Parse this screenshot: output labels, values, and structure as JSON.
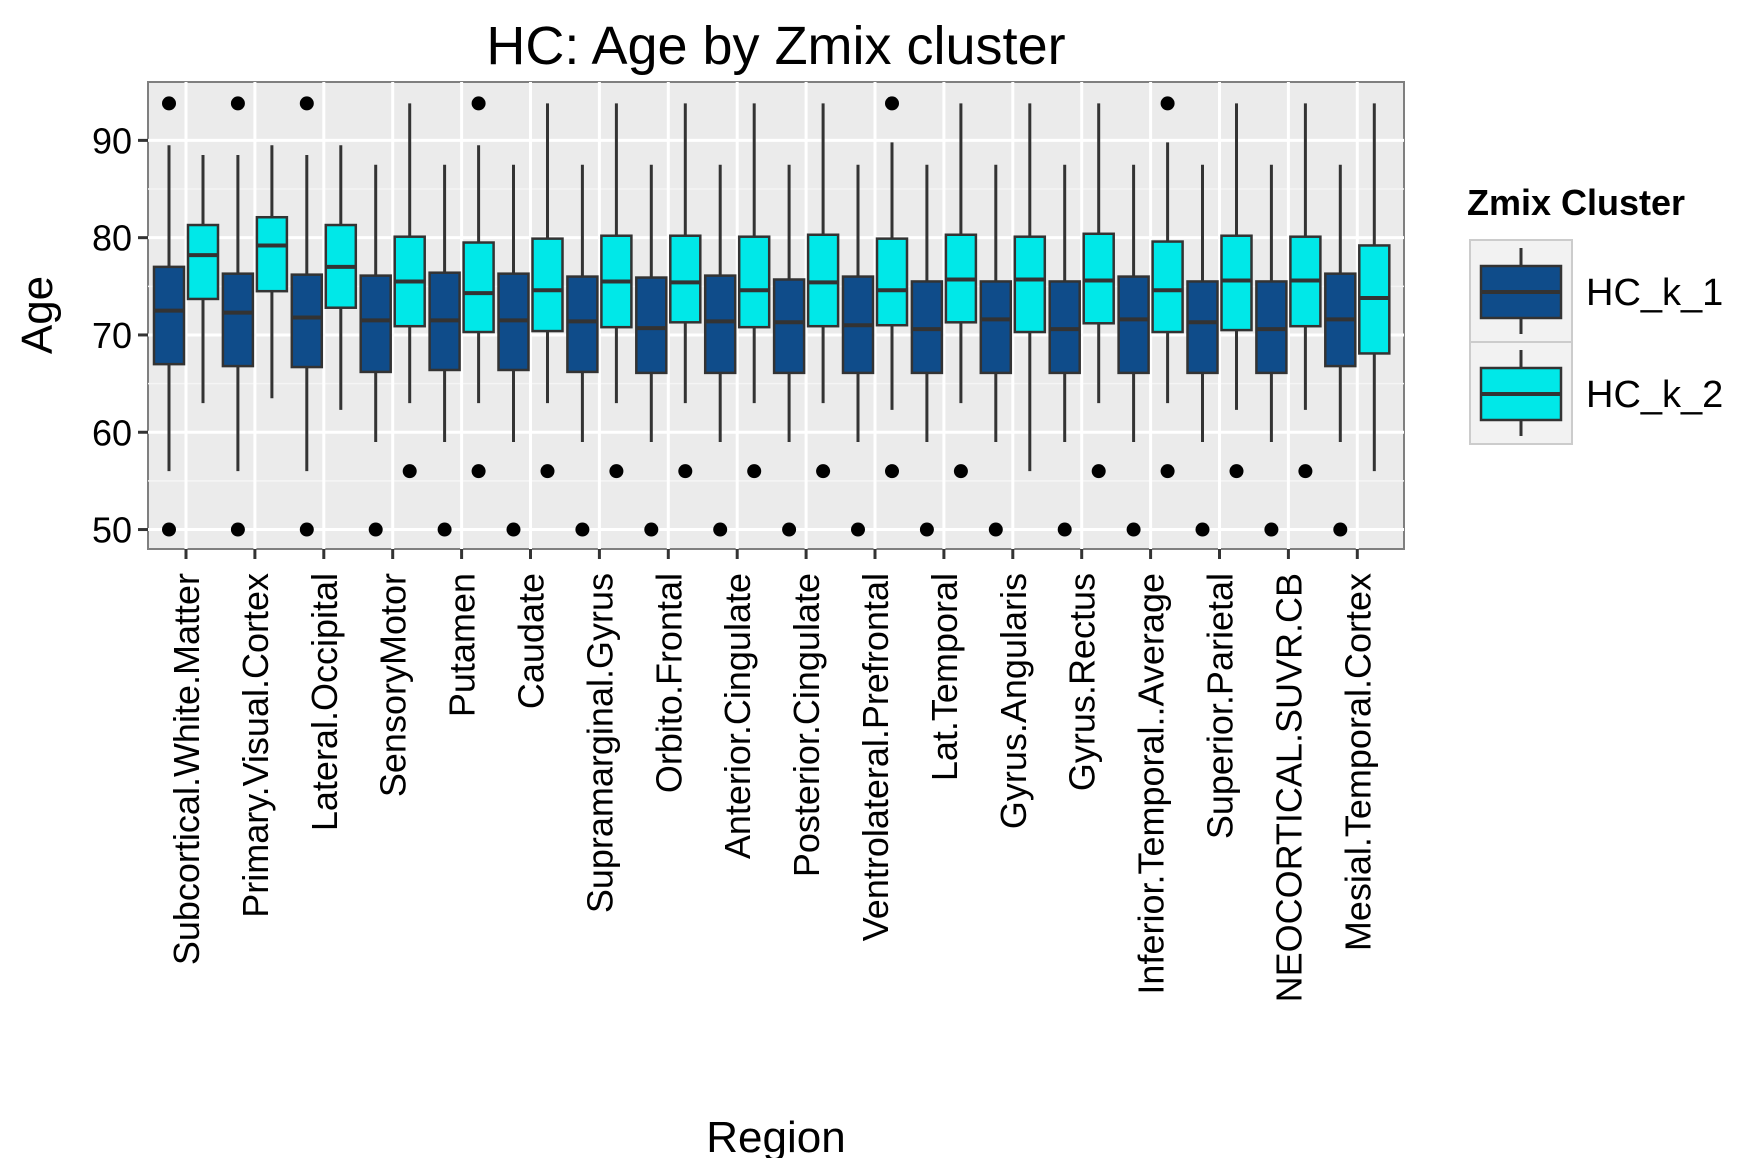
{
  "chart_data": {
    "type": "box",
    "title": "HC: Age by Zmix cluster",
    "xlabel": "Region",
    "ylabel": "Age",
    "ylim": [
      48,
      96
    ],
    "yticks": [
      50,
      60,
      70,
      80,
      90
    ],
    "grid": true,
    "legend": {
      "title": "Zmix Cluster",
      "placement": "right",
      "entries": [
        "HC_k_1",
        "HC_k_2"
      ]
    },
    "colors": {
      "HC_k_1": "#0f4c8a",
      "HC_k_2": "#00e8e8",
      "panel": "#ebebeb",
      "grid": "#ffffff",
      "whisker": "#333333"
    },
    "categories": [
      "Subcortical.White.Matter",
      "Primary.Visual.Cortex",
      "Lateral.Occipital",
      "SensoryMotor",
      "Putamen",
      "Caudate",
      "Supramarginal.Gyrus",
      "Orbito.Frontal",
      "Anterior.Cingulate",
      "Posterior.Cingulate",
      "Ventrolateral.Prefrontal",
      "Lat.Temporal",
      "Gyrus.Angularis",
      "Gyrus.Rectus",
      "Inferior.Temporal..Average",
      "Superior.Parietal",
      "NEOCORTICAL.SUVR.CB",
      "Mesial.Temporal.Cortex"
    ],
    "series": [
      {
        "name": "HC_k_1",
        "boxes": [
          {
            "min": 56,
            "q1": 67,
            "median": 72.5,
            "q3": 77,
            "max": 89.5,
            "outliers": [
              50,
              93.8
            ]
          },
          {
            "min": 56,
            "q1": 66.8,
            "median": 72.3,
            "q3": 76.3,
            "max": 88.5,
            "outliers": [
              50,
              93.8
            ]
          },
          {
            "min": 56,
            "q1": 66.7,
            "median": 71.8,
            "q3": 76.2,
            "max": 88.5,
            "outliers": [
              50,
              93.8
            ]
          },
          {
            "min": 59,
            "q1": 66.2,
            "median": 71.5,
            "q3": 76.1,
            "max": 87.5,
            "outliers": [
              50
            ]
          },
          {
            "min": 59,
            "q1": 66.4,
            "median": 71.5,
            "q3": 76.4,
            "max": 87.5,
            "outliers": [
              50
            ]
          },
          {
            "min": 59,
            "q1": 66.4,
            "median": 71.5,
            "q3": 76.3,
            "max": 87.5,
            "outliers": [
              50
            ]
          },
          {
            "min": 59,
            "q1": 66.2,
            "median": 71.4,
            "q3": 76.0,
            "max": 87.5,
            "outliers": [
              50
            ]
          },
          {
            "min": 59,
            "q1": 66.1,
            "median": 70.7,
            "q3": 75.9,
            "max": 87.5,
            "outliers": [
              50
            ]
          },
          {
            "min": 59,
            "q1": 66.1,
            "median": 71.4,
            "q3": 76.1,
            "max": 87.5,
            "outliers": [
              50
            ]
          },
          {
            "min": 59,
            "q1": 66.1,
            "median": 71.3,
            "q3": 75.7,
            "max": 87.5,
            "outliers": [
              50
            ]
          },
          {
            "min": 59,
            "q1": 66.1,
            "median": 71.0,
            "q3": 76.0,
            "max": 87.5,
            "outliers": [
              50
            ]
          },
          {
            "min": 59,
            "q1": 66.1,
            "median": 70.6,
            "q3": 75.5,
            "max": 87.5,
            "outliers": [
              50
            ]
          },
          {
            "min": 59,
            "q1": 66.1,
            "median": 71.6,
            "q3": 75.5,
            "max": 87.5,
            "outliers": [
              50
            ]
          },
          {
            "min": 59,
            "q1": 66.1,
            "median": 70.6,
            "q3": 75.5,
            "max": 87.5,
            "outliers": [
              50
            ]
          },
          {
            "min": 59,
            "q1": 66.1,
            "median": 71.6,
            "q3": 76.0,
            "max": 87.5,
            "outliers": [
              50
            ]
          },
          {
            "min": 59,
            "q1": 66.1,
            "median": 71.3,
            "q3": 75.5,
            "max": 87.5,
            "outliers": [
              50
            ]
          },
          {
            "min": 59,
            "q1": 66.1,
            "median": 70.6,
            "q3": 75.5,
            "max": 87.5,
            "outliers": [
              50
            ]
          },
          {
            "min": 59,
            "q1": 66.8,
            "median": 71.6,
            "q3": 76.3,
            "max": 87.5,
            "outliers": [
              50
            ]
          }
        ]
      },
      {
        "name": "HC_k_2",
        "boxes": [
          {
            "min": 63,
            "q1": 73.7,
            "median": 78.2,
            "q3": 81.3,
            "max": 88.5,
            "outliers": []
          },
          {
            "min": 63.5,
            "q1": 74.5,
            "median": 79.2,
            "q3": 82.1,
            "max": 89.5,
            "outliers": []
          },
          {
            "min": 62.3,
            "q1": 72.8,
            "median": 77.0,
            "q3": 81.3,
            "max": 89.5,
            "outliers": []
          },
          {
            "min": 63,
            "q1": 70.9,
            "median": 75.5,
            "q3": 80.1,
            "max": 93.8,
            "outliers": [
              56
            ]
          },
          {
            "min": 63,
            "q1": 70.3,
            "median": 74.3,
            "q3": 79.5,
            "max": 89.5,
            "outliers": [
              56,
              93.8
            ]
          },
          {
            "min": 63,
            "q1": 70.4,
            "median": 74.6,
            "q3": 79.9,
            "max": 93.8,
            "outliers": [
              56
            ]
          },
          {
            "min": 63,
            "q1": 70.8,
            "median": 75.5,
            "q3": 80.2,
            "max": 93.8,
            "outliers": [
              56
            ]
          },
          {
            "min": 63,
            "q1": 71.3,
            "median": 75.4,
            "q3": 80.2,
            "max": 93.8,
            "outliers": [
              56
            ]
          },
          {
            "min": 63,
            "q1": 70.8,
            "median": 74.6,
            "q3": 80.1,
            "max": 93.8,
            "outliers": [
              56
            ]
          },
          {
            "min": 63,
            "q1": 70.9,
            "median": 75.4,
            "q3": 80.3,
            "max": 93.8,
            "outliers": [
              56
            ]
          },
          {
            "min": 62.3,
            "q1": 71.0,
            "median": 74.6,
            "q3": 79.9,
            "max": 89.8,
            "outliers": [
              56,
              93.8
            ]
          },
          {
            "min": 63,
            "q1": 71.3,
            "median": 75.7,
            "q3": 80.3,
            "max": 93.8,
            "outliers": [
              56
            ]
          },
          {
            "min": 56,
            "q1": 70.3,
            "median": 75.7,
            "q3": 80.1,
            "max": 93.8,
            "outliers": []
          },
          {
            "min": 63,
            "q1": 71.2,
            "median": 75.6,
            "q3": 80.4,
            "max": 93.8,
            "outliers": [
              56
            ]
          },
          {
            "min": 63,
            "q1": 70.3,
            "median": 74.6,
            "q3": 79.6,
            "max": 89.8,
            "outliers": [
              56,
              93.8
            ]
          },
          {
            "min": 62.3,
            "q1": 70.5,
            "median": 75.6,
            "q3": 80.2,
            "max": 93.8,
            "outliers": [
              56
            ]
          },
          {
            "min": 62.3,
            "q1": 70.9,
            "median": 75.6,
            "q3": 80.1,
            "max": 93.8,
            "outliers": [
              56
            ]
          },
          {
            "min": 56,
            "q1": 68.1,
            "median": 73.8,
            "q3": 79.2,
            "max": 93.8,
            "outliers": []
          }
        ]
      }
    ]
  }
}
